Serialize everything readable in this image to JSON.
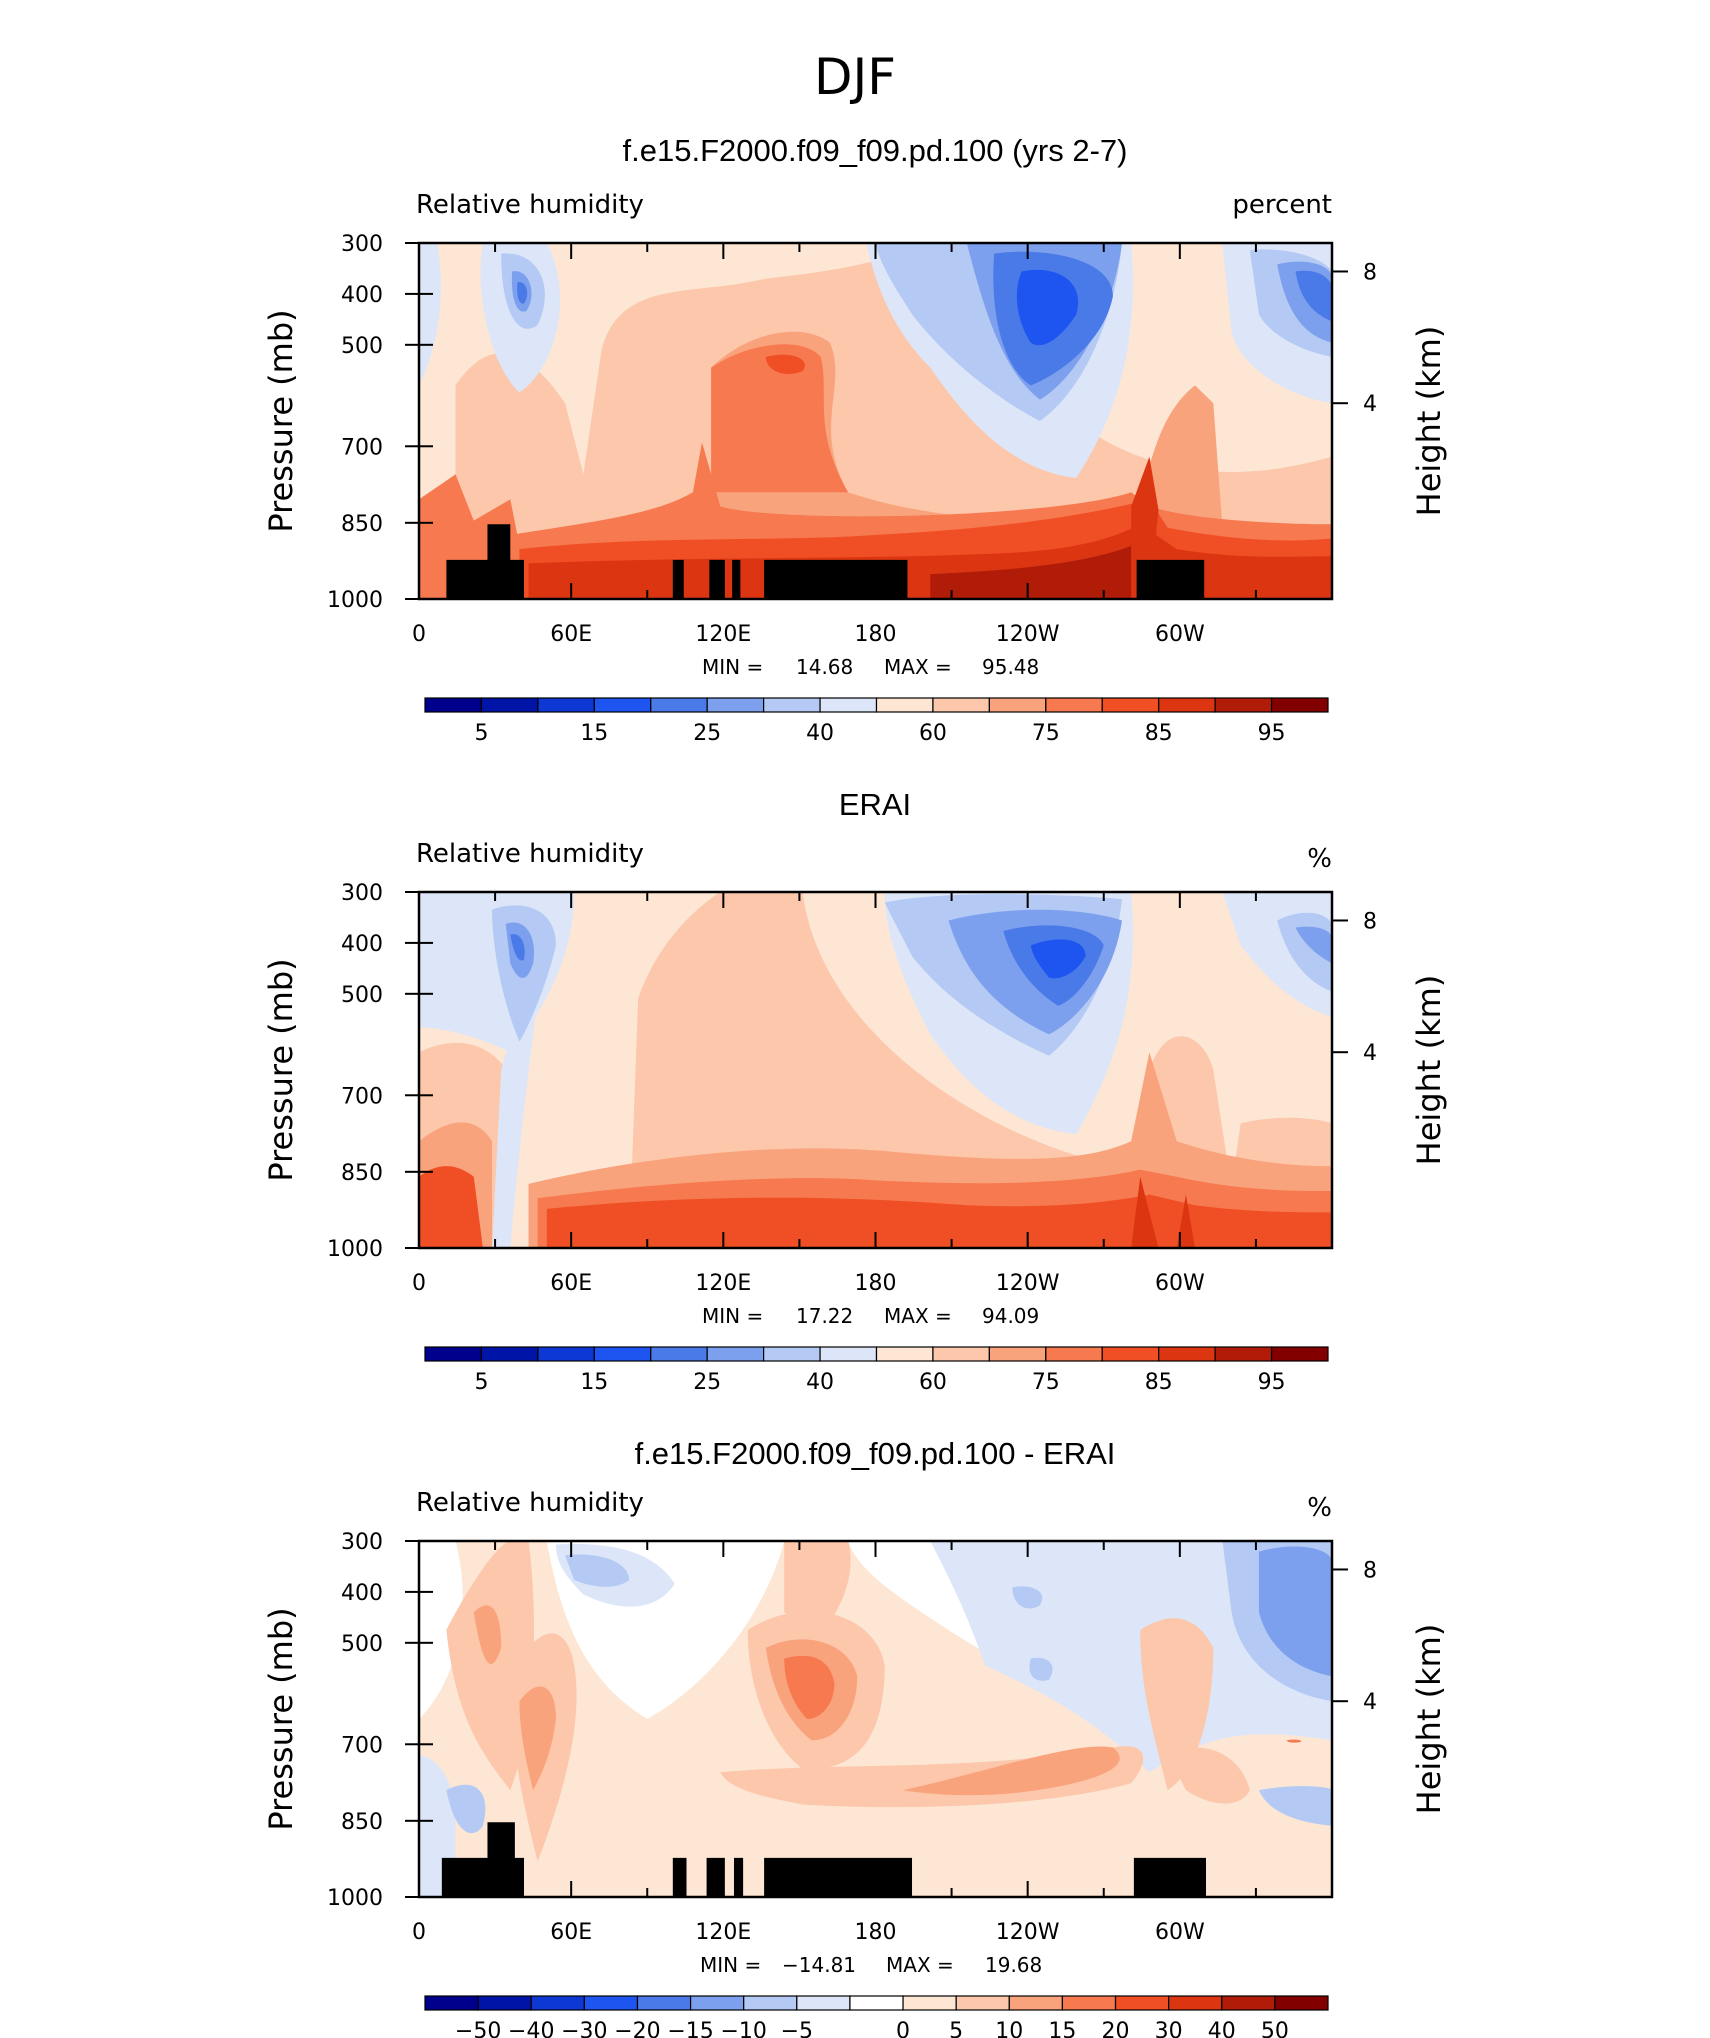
{
  "suptitle": "DJF",
  "colors": {
    "abs_scale": [
      "#00008c",
      "#0015a8",
      "#0e38d4",
      "#1e55f0",
      "#4a7ae8",
      "#7da0ee",
      "#b4c9f3",
      "#dce6f8",
      "#fde6d4",
      "#fcc7aa",
      "#f9a37d",
      "#f6794f",
      "#f04f25",
      "#dc3511",
      "#b01c08",
      "#830000"
    ],
    "diff_scale": [
      "#00008c",
      "#0015a8",
      "#0e38d4",
      "#1e55f0",
      "#4a7ae8",
      "#7da0ee",
      "#b4c9f3",
      "#dce6f8",
      "#ffffff",
      "#fde6d4",
      "#fcc7aa",
      "#f9a37d",
      "#f6794f",
      "#f04f25",
      "#dc3511",
      "#b01c08",
      "#830000"
    ],
    "topography": "#000000"
  },
  "chart_data": [
    {
      "type": "heatmap",
      "title": "f.e15.F2000.f09_f09.pd.100 (yrs 2-7)",
      "left_label": "Relative humidity",
      "right_label": "percent",
      "ylabel": "Pressure (mb)",
      "ylabel_right": "Height (km)",
      "y_ticks": [
        "300",
        "400",
        "500",
        "700",
        "850",
        "1000"
      ],
      "y_right_ticks": [
        "8",
        "4"
      ],
      "x_ticks": [
        "0",
        "60E",
        "120E",
        "180",
        "120W",
        "60W"
      ],
      "min_label": "MIN =",
      "min_value": "14.68",
      "max_label": "MAX =",
      "max_value": "95.48",
      "colorbar_labels": [
        "5",
        "15",
        "25",
        "40",
        "60",
        "75",
        "85",
        "95"
      ],
      "scale": "abs",
      "grid": false
    },
    {
      "type": "heatmap",
      "title": "ERAI",
      "left_label": "Relative humidity",
      "right_label": "%",
      "ylabel": "Pressure (mb)",
      "ylabel_right": "Height (km)",
      "y_ticks": [
        "300",
        "400",
        "500",
        "700",
        "850",
        "1000"
      ],
      "y_right_ticks": [
        "8",
        "4"
      ],
      "x_ticks": [
        "0",
        "60E",
        "120E",
        "180",
        "120W",
        "60W"
      ],
      "min_label": "MIN =",
      "min_value": "17.22",
      "max_label": "MAX =",
      "max_value": "94.09",
      "colorbar_labels": [
        "5",
        "15",
        "25",
        "40",
        "60",
        "75",
        "85",
        "95"
      ],
      "scale": "abs",
      "grid": false
    },
    {
      "type": "heatmap",
      "title": "f.e15.F2000.f09_f09.pd.100 - ERAI",
      "left_label": "Relative humidity",
      "right_label": "%",
      "ylabel": "Pressure (mb)",
      "ylabel_right": "Height (km)",
      "y_ticks": [
        "300",
        "400",
        "500",
        "700",
        "850",
        "1000"
      ],
      "y_right_ticks": [
        "8",
        "4"
      ],
      "x_ticks": [
        "0",
        "60E",
        "120E",
        "180",
        "120W",
        "60W"
      ],
      "min_label": "MIN =",
      "min_value": "−14.81",
      "max_label": "MAX =",
      "max_value": "19.68",
      "colorbar_labels": [
        "−50",
        "−40",
        "−30",
        "−20",
        "−15",
        "−10",
        "−5",
        "0",
        "5",
        "10",
        "15",
        "20",
        "30",
        "40",
        "50"
      ],
      "scale": "diff",
      "grid": false
    }
  ]
}
